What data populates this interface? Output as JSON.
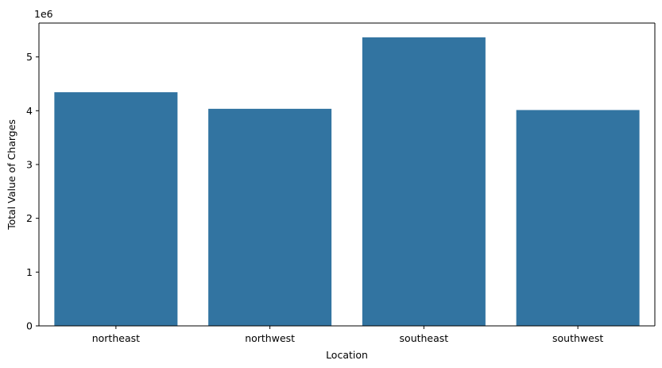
{
  "chart_data": {
    "type": "bar",
    "categories": [
      "northeast",
      "northwest",
      "southeast",
      "southwest"
    ],
    "values": [
      4343669,
      4035712,
      5363690,
      4012755
    ],
    "xlabel": "Location",
    "ylabel": "Total Value of Charges",
    "ylim": [
      0,
      5630000
    ],
    "y_ticks": [
      0,
      1000000,
      2000000,
      3000000,
      4000000,
      5000000
    ],
    "y_tick_labels": [
      "0",
      "1",
      "2",
      "3",
      "4",
      "5"
    ],
    "y_offset_label": "1e6",
    "bar_color": "#3274a1",
    "grid": false,
    "legend": "none"
  }
}
